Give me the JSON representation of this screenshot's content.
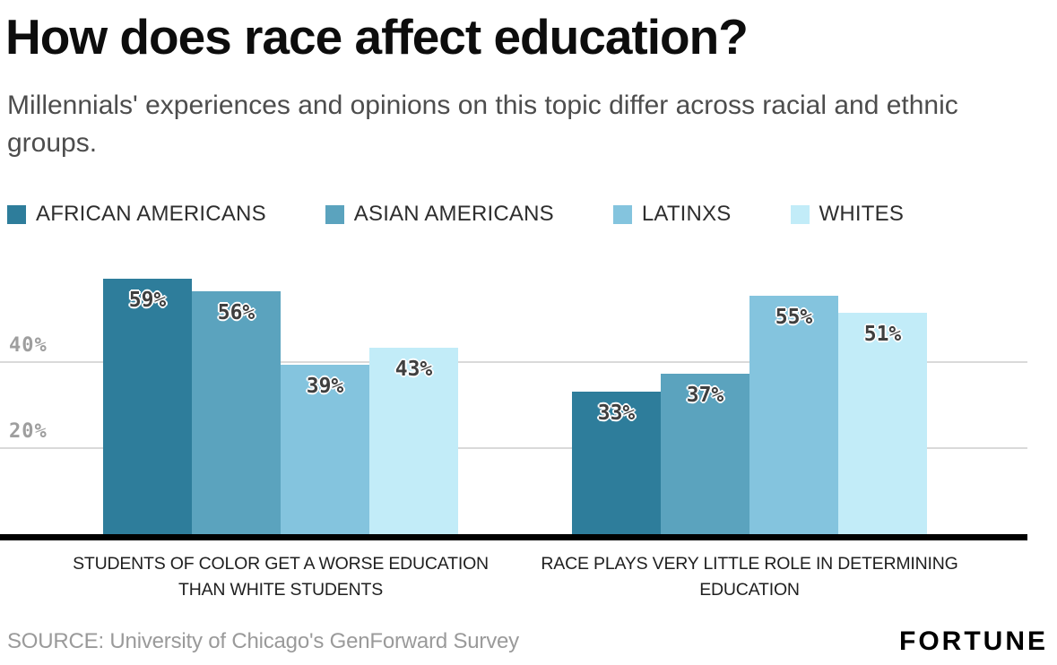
{
  "header": {
    "title": "How does race affect education?",
    "subtitle": "Millennials' experiences and opinions on this topic differ across racial and ethnic groups."
  },
  "chart_data": {
    "type": "bar",
    "title": "How does race affect education?",
    "subtitle": "Millennials' experiences and opinions on this topic differ across racial and ethnic groups.",
    "categories": [
      "STUDENTS OF COLOR GET A WORSE EDUCATION THAN WHITE STUDENTS",
      "RACE PLAYS VERY LITTLE ROLE IN DETERMINING EDUCATION"
    ],
    "series": [
      {
        "name": "AFRICAN AMERICANS",
        "color": "#2e7d9b",
        "values": [
          59,
          33
        ]
      },
      {
        "name": "ASIAN AMERICANS",
        "color": "#5ba3be",
        "values": [
          56,
          37
        ]
      },
      {
        "name": "LATINXS",
        "color": "#84c4de",
        "values": [
          39,
          55
        ]
      },
      {
        "name": "WHITES",
        "color": "#c2ecf8",
        "values": [
          43,
          51
        ]
      }
    ],
    "yticks": [
      40,
      20
    ],
    "ytick_labels": [
      "40%",
      "20%"
    ],
    "ylim": [
      0,
      63
    ],
    "grid": true,
    "legend_position": "top",
    "value_suffix": "%"
  },
  "footer": {
    "source": "SOURCE: University of Chicago's GenForward Survey",
    "brand": "FORTUNE"
  }
}
